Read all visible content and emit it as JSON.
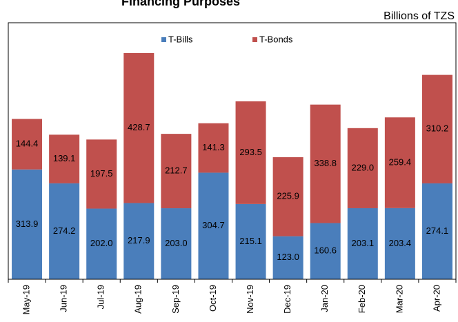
{
  "chart_data": {
    "type": "stacked_bar",
    "title": "Financing Purposes",
    "unit_label": "Billions of TZS",
    "categories": [
      "May-19",
      "Jun-19",
      "Jul-19",
      "Aug-19",
      "Sep-19",
      "Oct-19",
      "Nov-19",
      "Dec-19",
      "Jan-20",
      "Feb-20",
      "Mar-20",
      "Apr-20"
    ],
    "series": [
      {
        "name": "T-Bills",
        "color": "#4a7ebb",
        "values": [
          313.9,
          274.2,
          202.0,
          217.9,
          203.0,
          304.7,
          215.1,
          123.0,
          160.6,
          203.1,
          203.4,
          274.1
        ],
        "value_labels": [
          "313.9",
          "274.2",
          "202.0",
          "217.9",
          "203.0",
          "304.7",
          "215.1",
          "123.0",
          "160.6",
          "203.1",
          "203.4",
          "274.1"
        ]
      },
      {
        "name": "T-Bonds",
        "color": "#c0504d",
        "values": [
          144.4,
          139.1,
          197.5,
          428.7,
          212.7,
          141.3,
          293.5,
          225.9,
          338.8,
          229.0,
          259.4,
          310.2
        ],
        "value_labels": [
          "144.4",
          "139.1",
          "197.5",
          "428.7",
          "212.7",
          "141.3",
          "293.5",
          "225.9",
          "338.8",
          "229.0",
          "259.4",
          "310.2"
        ]
      }
    ],
    "legend": "top"
  }
}
